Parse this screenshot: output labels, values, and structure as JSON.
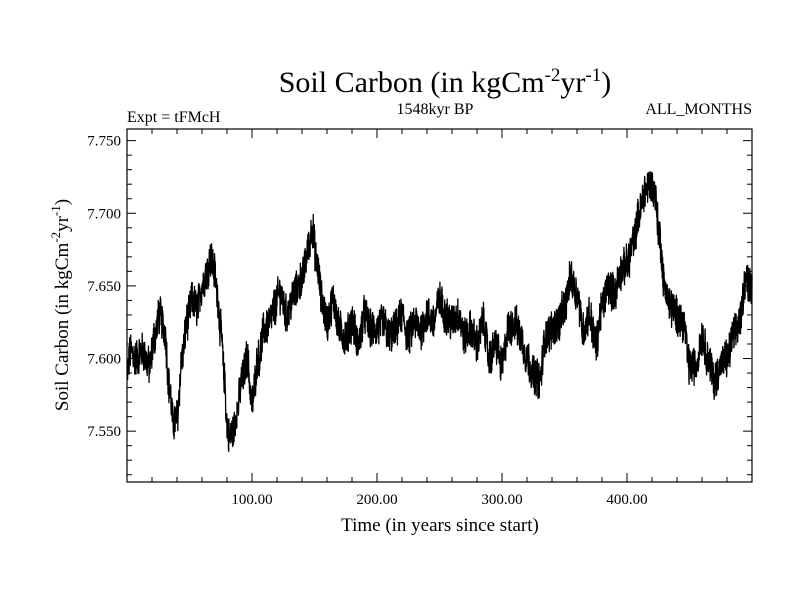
{
  "chart_data": {
    "type": "line",
    "title": {
      "main": "Soil Carbon (in kgCm",
      "sup1": "-2",
      "mid": "yr",
      "sup2": "-1",
      "end": ")"
    },
    "subtitle_left": "Expt = tFMcH",
    "subtitle_center": "1548kyr BP",
    "subtitle_right": "ALL_MONTHS",
    "xlabel": "Time (in years since start)",
    "ylabel": {
      "main": "Soil Carbon (in kgCm",
      "sup1": "-2",
      "mid": "yr",
      "sup2": "-1",
      "end": ")"
    },
    "xlim": [
      0,
      500
    ],
    "ylim": [
      7.515,
      7.758
    ],
    "x_ticks": [
      100,
      200,
      300,
      400
    ],
    "x_tick_labels": [
      "100.00",
      "200.00",
      "300.00",
      "400.00"
    ],
    "y_ticks": [
      7.55,
      7.6,
      7.65,
      7.7,
      7.75
    ],
    "y_tick_labels": [
      "7.550",
      "7.600",
      "7.650",
      "7.700",
      "7.750"
    ],
    "grid": false,
    "series": [
      {
        "name": "Soil Carbon",
        "color": "#000000",
        "noise_amplitude": 0.012,
        "x": [
          0,
          3,
          7,
          12,
          18,
          22,
          26,
          30,
          34,
          37,
          40,
          44,
          48,
          52,
          56,
          60,
          64,
          67,
          70,
          72,
          75,
          78,
          80,
          82,
          85,
          88,
          92,
          96,
          100,
          105,
          110,
          114,
          118,
          122,
          128,
          134,
          140,
          145,
          148,
          152,
          156,
          160,
          165,
          170,
          175,
          180,
          185,
          190,
          195,
          200,
          205,
          210,
          215,
          220,
          225,
          230,
          235,
          240,
          245,
          250,
          255,
          260,
          265,
          270,
          275,
          280,
          285,
          290,
          295,
          300,
          305,
          310,
          315,
          320,
          325,
          330,
          335,
          340,
          345,
          350,
          355,
          360,
          365,
          370,
          375,
          380,
          385,
          390,
          395,
          400,
          405,
          410,
          414,
          418,
          422,
          426,
          430,
          435,
          440,
          445,
          450,
          455,
          460,
          465,
          470,
          475,
          480,
          485,
          490,
          495,
          500
        ],
        "y": [
          7.59,
          7.605,
          7.6,
          7.605,
          7.595,
          7.615,
          7.63,
          7.62,
          7.58,
          7.555,
          7.56,
          7.6,
          7.625,
          7.64,
          7.635,
          7.65,
          7.66,
          7.67,
          7.66,
          7.645,
          7.62,
          7.585,
          7.555,
          7.545,
          7.55,
          7.565,
          7.585,
          7.6,
          7.57,
          7.6,
          7.62,
          7.625,
          7.635,
          7.645,
          7.63,
          7.645,
          7.655,
          7.675,
          7.69,
          7.665,
          7.64,
          7.625,
          7.64,
          7.62,
          7.615,
          7.625,
          7.61,
          7.63,
          7.62,
          7.62,
          7.625,
          7.615,
          7.62,
          7.63,
          7.615,
          7.625,
          7.62,
          7.63,
          7.625,
          7.64,
          7.63,
          7.625,
          7.63,
          7.615,
          7.62,
          7.61,
          7.625,
          7.6,
          7.61,
          7.595,
          7.62,
          7.625,
          7.615,
          7.6,
          7.59,
          7.585,
          7.615,
          7.62,
          7.625,
          7.635,
          7.655,
          7.645,
          7.62,
          7.63,
          7.61,
          7.635,
          7.65,
          7.645,
          7.66,
          7.665,
          7.68,
          7.7,
          7.715,
          7.72,
          7.715,
          7.685,
          7.65,
          7.635,
          7.63,
          7.625,
          7.595,
          7.595,
          7.615,
          7.6,
          7.585,
          7.595,
          7.6,
          7.615,
          7.625,
          7.655,
          7.65
        ]
      }
    ]
  }
}
